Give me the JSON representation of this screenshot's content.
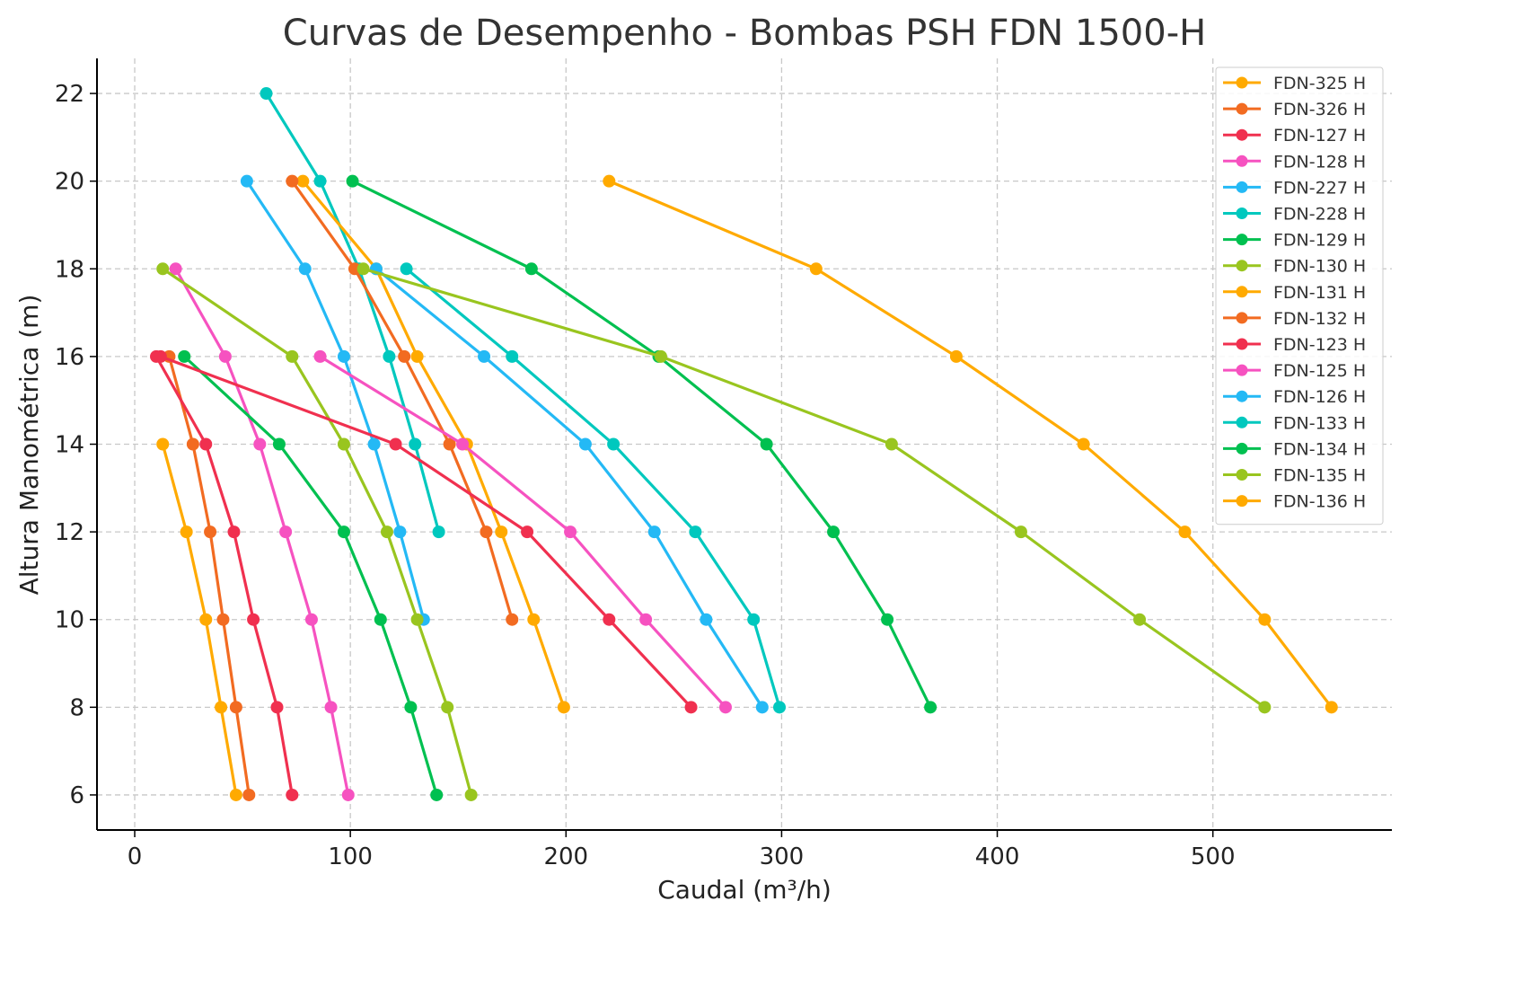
{
  "chart_data": {
    "type": "line",
    "title": "Curvas de Desempenho - Bombas PSH FDN 1500-H",
    "xlabel": "Caudal (m³/h)",
    "ylabel": "Altura Manométrica (m)",
    "xlim": [
      -17.5,
      583
    ],
    "ylim": [
      5.2,
      22.8
    ],
    "xticks": [
      0,
      100,
      200,
      300,
      400,
      500
    ],
    "yticks": [
      6,
      8,
      10,
      12,
      14,
      16,
      18,
      20,
      22
    ],
    "grid": true,
    "legend_position": "top-right",
    "series": [
      {
        "name": "FDN-325 H",
        "color": "#FFAA00",
        "points": [
          [
            13,
            14
          ],
          [
            24,
            12
          ],
          [
            33,
            10
          ],
          [
            40,
            8
          ],
          [
            47,
            6
          ]
        ]
      },
      {
        "name": "FDN-326 H",
        "color": "#F26B21",
        "points": [
          [
            16,
            16
          ],
          [
            27,
            14
          ],
          [
            35,
            12
          ],
          [
            41,
            10
          ],
          [
            47,
            8
          ],
          [
            53,
            6
          ]
        ]
      },
      {
        "name": "FDN-127 H",
        "color": "#F0304F",
        "points": [
          [
            10,
            16
          ],
          [
            33,
            14
          ],
          [
            46,
            12
          ],
          [
            55,
            10
          ],
          [
            66,
            8
          ],
          [
            73,
            6
          ]
        ]
      },
      {
        "name": "FDN-128 H",
        "color": "#F652C0",
        "points": [
          [
            19,
            18
          ],
          [
            42,
            16
          ],
          [
            58,
            14
          ],
          [
            70,
            12
          ],
          [
            82,
            10
          ],
          [
            91,
            8
          ],
          [
            99,
            6
          ]
        ]
      },
      {
        "name": "FDN-227 H",
        "color": "#24B9F5",
        "points": [
          [
            52,
            20
          ],
          [
            79,
            18
          ],
          [
            97,
            16
          ],
          [
            111,
            14
          ],
          [
            123,
            12
          ],
          [
            134,
            10
          ]
        ]
      },
      {
        "name": "FDN-228 H",
        "color": "#00C8BE",
        "points": [
          [
            61,
            22
          ],
          [
            86,
            20
          ],
          [
            104,
            18
          ],
          [
            118,
            16
          ],
          [
            130,
            14
          ],
          [
            141,
            12
          ]
        ]
      },
      {
        "name": "FDN-129 H",
        "color": "#00C050",
        "points": [
          [
            23,
            16
          ],
          [
            67,
            14
          ],
          [
            97,
            12
          ],
          [
            114,
            10
          ],
          [
            128,
            8
          ],
          [
            140,
            6
          ]
        ]
      },
      {
        "name": "FDN-130 H",
        "color": "#99C51F",
        "points": [
          [
            13,
            18
          ],
          [
            73,
            16
          ],
          [
            97,
            14
          ],
          [
            117,
            12
          ],
          [
            131,
            10
          ],
          [
            145,
            8
          ],
          [
            156,
            6
          ]
        ]
      },
      {
        "name": "FDN-131 H",
        "color": "#FFAA00",
        "points": [
          [
            78,
            20
          ],
          [
            112,
            18
          ],
          [
            131,
            16
          ],
          [
            154,
            14
          ],
          [
            170,
            12
          ],
          [
            185,
            10
          ],
          [
            199,
            8
          ]
        ]
      },
      {
        "name": "FDN-132 H",
        "color": "#F26B21",
        "points": [
          [
            73,
            20
          ],
          [
            102,
            18
          ],
          [
            125,
            16
          ],
          [
            146,
            14
          ],
          [
            163,
            12
          ],
          [
            175,
            10
          ]
        ]
      },
      {
        "name": "FDN-123 H",
        "color": "#F0304F",
        "points": [
          [
            12,
            16
          ],
          [
            121,
            14
          ],
          [
            182,
            12
          ],
          [
            220,
            10
          ],
          [
            258,
            8
          ]
        ]
      },
      {
        "name": "FDN-125 H",
        "color": "#F652C0",
        "points": [
          [
            86,
            16
          ],
          [
            152,
            14
          ],
          [
            202,
            12
          ],
          [
            237,
            10
          ],
          [
            274,
            8
          ]
        ]
      },
      {
        "name": "FDN-126 H",
        "color": "#24B9F5",
        "points": [
          [
            112,
            18
          ],
          [
            162,
            16
          ],
          [
            209,
            14
          ],
          [
            241,
            12
          ],
          [
            265,
            10
          ],
          [
            291,
            8
          ]
        ]
      },
      {
        "name": "FDN-133 H",
        "color": "#00C8BE",
        "points": [
          [
            126,
            18
          ],
          [
            175,
            16
          ],
          [
            222,
            14
          ],
          [
            260,
            12
          ],
          [
            287,
            10
          ],
          [
            299,
            8
          ]
        ]
      },
      {
        "name": "FDN-134 H",
        "color": "#00C050",
        "points": [
          [
            101,
            20
          ],
          [
            184,
            18
          ],
          [
            243,
            16
          ],
          [
            293,
            14
          ],
          [
            324,
            12
          ],
          [
            349,
            10
          ],
          [
            369,
            8
          ]
        ]
      },
      {
        "name": "FDN-135 H",
        "color": "#99C51F",
        "points": [
          [
            106,
            18
          ],
          [
            244,
            16
          ],
          [
            351,
            14
          ],
          [
            411,
            12
          ],
          [
            466,
            10
          ],
          [
            524,
            8
          ]
        ]
      },
      {
        "name": "FDN-136 H",
        "color": "#FFAA00",
        "points": [
          [
            220,
            20
          ],
          [
            316,
            18
          ],
          [
            381,
            16
          ],
          [
            440,
            14
          ],
          [
            487,
            12
          ],
          [
            524,
            10
          ],
          [
            555,
            8
          ]
        ]
      }
    ]
  }
}
